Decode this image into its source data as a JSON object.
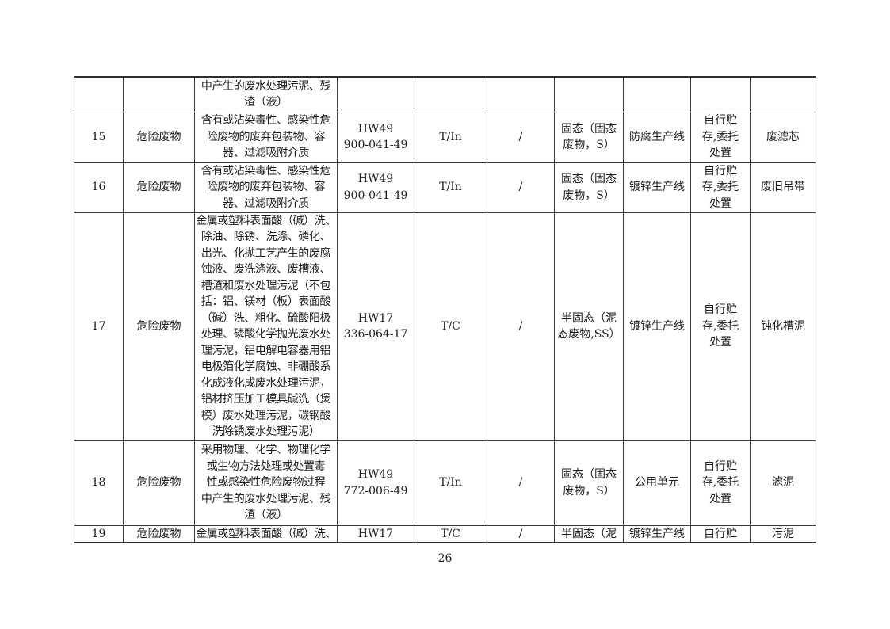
{
  "page": {
    "number": "26"
  },
  "table": {
    "rows": [
      {
        "index": "",
        "category": "",
        "description": "中产生的废水处理污泥、残\n渣（液）",
        "code": "",
        "mark": "",
        "slash": "",
        "state": "",
        "source": "",
        "disposal": "",
        "name": ""
      },
      {
        "index": "15",
        "category": "危险废物",
        "description": "含有或沾染毒性、感染性危\n险废物的废弃包装物、容\n器、过滤吸附介质",
        "code": "HW49\n900-041-49",
        "mark": "T/In",
        "slash": "/",
        "state": "固态（固态\n废物，S）",
        "source": "防腐生产线",
        "disposal": "自行贮\n存,委托\n处置",
        "name": "废滤芯"
      },
      {
        "index": "16",
        "category": "危险废物",
        "description": "含有或沾染毒性、感染性危\n险废物的废弃包装物、容\n器、过滤吸附介质",
        "code": "HW49\n900-041-49",
        "mark": "T/In",
        "slash": "/",
        "state": "固态（固态\n废物，S）",
        "source": "镀锌生产线",
        "disposal": "自行贮\n存,委托\n处置",
        "name": "废旧吊带"
      },
      {
        "index": "17",
        "category": "危险废物",
        "description": "金属或塑料表面酸（碱）洗、\n除油、除锈、洗涤、磷化、\n出光、化抛工艺产生的废腐\n蚀液、废洗涤液、废槽液、\n槽渣和废水处理污泥（不包\n括：铝、镁材（板）表面酸\n（碱）洗、粗化、硫酸阳极\n处理、磷酸化学抛光废水处\n理污泥，铝电解电容器用铝\n电极箔化学腐蚀、非硼酸系\n化成液化成废水处理污泥，\n铝材挤压加工模具碱洗（煲\n模）废水处理污泥，碳钢酸\n洗除锈废水处理污泥）",
        "code": "HW17\n336-064-17",
        "mark": "T/C",
        "slash": "/",
        "state": "半固态（泥\n态废物,SS）",
        "source": "镀锌生产线",
        "disposal": "自行贮\n存,委托\n处置",
        "name": "钝化槽泥"
      },
      {
        "index": "18",
        "category": "危险废物",
        "description": "采用物理、化学、物理化学\n或生物方法处理或处置毒\n性或感染性危险废物过程\n中产生的废水处理污泥、残\n渣（液）",
        "code": "HW49\n772-006-49",
        "mark": "T/In",
        "slash": "/",
        "state": "固态（固态\n废物，S）",
        "source": "公用单元",
        "disposal": "自行贮\n存,委托\n处置",
        "name": "滤泥"
      },
      {
        "index": "19",
        "category": "危险废物",
        "description": "金属或塑料表面酸（碱）洗、",
        "code": "HW17",
        "mark": "T/C",
        "slash": "/",
        "state": "半固态（泥",
        "source": "镀锌生产线",
        "disposal": "自行贮",
        "name": "污泥"
      }
    ]
  }
}
